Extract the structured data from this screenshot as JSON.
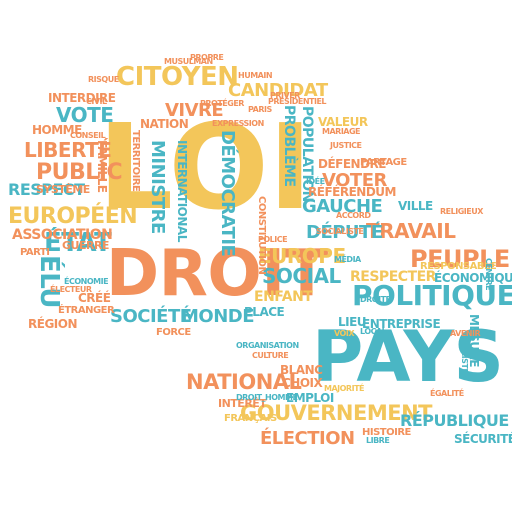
{
  "colors": {
    "yellow": "#f3c65a",
    "orange": "#f2915c",
    "teal": "#4ab6c4",
    "background": "#ffffff"
  },
  "words": [
    {
      "text": "LOI",
      "color": "yellow"
    },
    {
      "text": "DROIT",
      "color": "orange"
    },
    {
      "text": "PAYS",
      "color": "teal"
    },
    {
      "text": "POLITIQUE",
      "color": "teal"
    },
    {
      "text": "CITOYEN",
      "color": "yellow"
    },
    {
      "text": "GOUVERNEMENT",
      "color": "yellow"
    },
    {
      "text": "NATIONAL",
      "color": "orange"
    },
    {
      "text": "PEUPLE",
      "color": "orange"
    },
    {
      "text": "ÉTAT",
      "color": "teal"
    },
    {
      "text": "TRAVAIL",
      "color": "orange"
    },
    {
      "text": "EUROPÉEN",
      "color": "yellow"
    },
    {
      "text": "PUBLIC",
      "color": "orange"
    },
    {
      "text": "LIBERTÉ",
      "color": "orange"
    },
    {
      "text": "ÉLECTION",
      "color": "orange"
    },
    {
      "text": "SOCIÉTÉ",
      "color": "teal"
    },
    {
      "text": "MONDE",
      "color": "teal"
    },
    {
      "text": "SOCIAL",
      "color": "teal"
    },
    {
      "text": "EUROPE",
      "color": "yellow"
    },
    {
      "text": "VOTE",
      "color": "teal"
    },
    {
      "text": "VIVRE",
      "color": "orange"
    },
    {
      "text": "CANDIDAT",
      "color": "yellow"
    },
    {
      "text": "GAUCHE",
      "color": "teal"
    },
    {
      "text": "VOTER",
      "color": "orange"
    },
    {
      "text": "DÉPUTÉ",
      "color": "teal"
    },
    {
      "text": "DÉMOCRATIE",
      "color": "teal"
    },
    {
      "text": "MINISTRE",
      "color": "teal"
    },
    {
      "text": "RESPECT",
      "color": "teal"
    },
    {
      "text": "ASSOCIATION",
      "color": "orange"
    },
    {
      "text": "ÉLU",
      "color": "teal"
    },
    {
      "text": "RÉPUBLIQUE",
      "color": "teal"
    },
    {
      "text": "ENFANT",
      "color": "yellow"
    },
    {
      "text": "RESPECTER",
      "color": "yellow"
    },
    {
      "text": "PROBLÈME",
      "color": "teal"
    },
    {
      "text": "POPULATION",
      "color": "teal"
    },
    {
      "text": "VALEUR",
      "color": "yellow"
    },
    {
      "text": "INTERDIRE",
      "color": "orange"
    },
    {
      "text": "HOMME",
      "color": "orange"
    },
    {
      "text": "SÉCURITÉ",
      "color": "teal"
    },
    {
      "text": "VILLE",
      "color": "teal"
    },
    {
      "text": "ÉCONOMIQUE",
      "color": "teal"
    },
    {
      "text": "ENTREPRISE",
      "color": "teal"
    },
    {
      "text": "RÉFÉRENDUM",
      "color": "orange"
    },
    {
      "text": "DÉFENDRE",
      "color": "orange"
    },
    {
      "text": "PLACE",
      "color": "teal"
    },
    {
      "text": "RÉGION",
      "color": "orange"
    },
    {
      "text": "CRÉÉ",
      "color": "orange"
    },
    {
      "text": "INTÉRÊT",
      "color": "orange"
    },
    {
      "text": "BLANC",
      "color": "orange"
    },
    {
      "text": "CHOIX",
      "color": "orange"
    },
    {
      "text": "EMPLOI",
      "color": "teal"
    },
    {
      "text": "LIEU",
      "color": "teal"
    },
    {
      "text": "HISTOIRE",
      "color": "orange"
    },
    {
      "text": "FRANÇAIS",
      "color": "yellow"
    },
    {
      "text": "NATION",
      "color": "orange"
    },
    {
      "text": "INTERNATIONAL",
      "color": "teal"
    },
    {
      "text": "TERRITOIRE",
      "color": "orange"
    },
    {
      "text": "FAMILLE",
      "color": "orange"
    },
    {
      "text": "SYSTÈME",
      "color": "orange"
    },
    {
      "text": "GUERRE",
      "color": "orange"
    },
    {
      "text": "PARTI",
      "color": "orange"
    },
    {
      "text": "ÉTRANGER",
      "color": "orange"
    },
    {
      "text": "FORCE",
      "color": "orange"
    },
    {
      "text": "MESURE",
      "color": "teal"
    },
    {
      "text": "RESPONSABLE",
      "color": "yellow"
    },
    {
      "text": "PARTAGE",
      "color": "orange"
    },
    {
      "text": "CONSTITUTION",
      "color": "orange"
    },
    {
      "text": "DROIT_HOMME",
      "color": "teal"
    },
    {
      "text": "ACCORD",
      "color": "orange"
    },
    {
      "text": "SOCIALISTE",
      "color": "orange"
    },
    {
      "text": "PRÉSIDENTIEL",
      "color": "orange"
    },
    {
      "text": "MAJORITÉ",
      "color": "yellow"
    },
    {
      "text": "LOCAL",
      "color": "teal"
    },
    {
      "text": "ÉCONOMIE",
      "color": "teal"
    },
    {
      "text": "CONSEIL",
      "color": "orange"
    },
    {
      "text": "PROTÉGER",
      "color": "orange"
    },
    {
      "text": "LIBRE",
      "color": "teal"
    },
    {
      "text": "AVENIR",
      "color": "orange"
    },
    {
      "text": "CULTURE",
      "color": "orange"
    },
    {
      "text": "VOIX",
      "color": "yellow"
    },
    {
      "text": "ÉGALITÉ",
      "color": "orange"
    },
    {
      "text": "ORGANISATION",
      "color": "teal"
    },
    {
      "text": "CENTRE",
      "color": "teal"
    },
    {
      "text": "PRIVER",
      "color": "orange"
    },
    {
      "text": "MÉDIA",
      "color": "teal"
    },
    {
      "text": "POLICE",
      "color": "orange"
    },
    {
      "text": "IDÉE",
      "color": "teal"
    },
    {
      "text": "ÉLECTEUR",
      "color": "orange"
    },
    {
      "text": "RELIGIEUX",
      "color": "orange"
    },
    {
      "text": "MARIAGE",
      "color": "orange"
    },
    {
      "text": "HUMAIN",
      "color": "orange"
    },
    {
      "text": "CIVIL",
      "color": "orange"
    },
    {
      "text": "DROITE",
      "color": "teal"
    },
    {
      "text": "PROPRE",
      "color": "orange"
    },
    {
      "text": "MUSULMAN",
      "color": "orange"
    },
    {
      "text": "EXPRESSION",
      "color": "orange"
    },
    {
      "text": "JUSTICE",
      "color": "orange"
    },
    {
      "text": "PARIS",
      "color": "orange"
    },
    {
      "text": "RISQUE",
      "color": "orange"
    },
    {
      "text": "EXISTER",
      "color": "teal"
    }
  ]
}
